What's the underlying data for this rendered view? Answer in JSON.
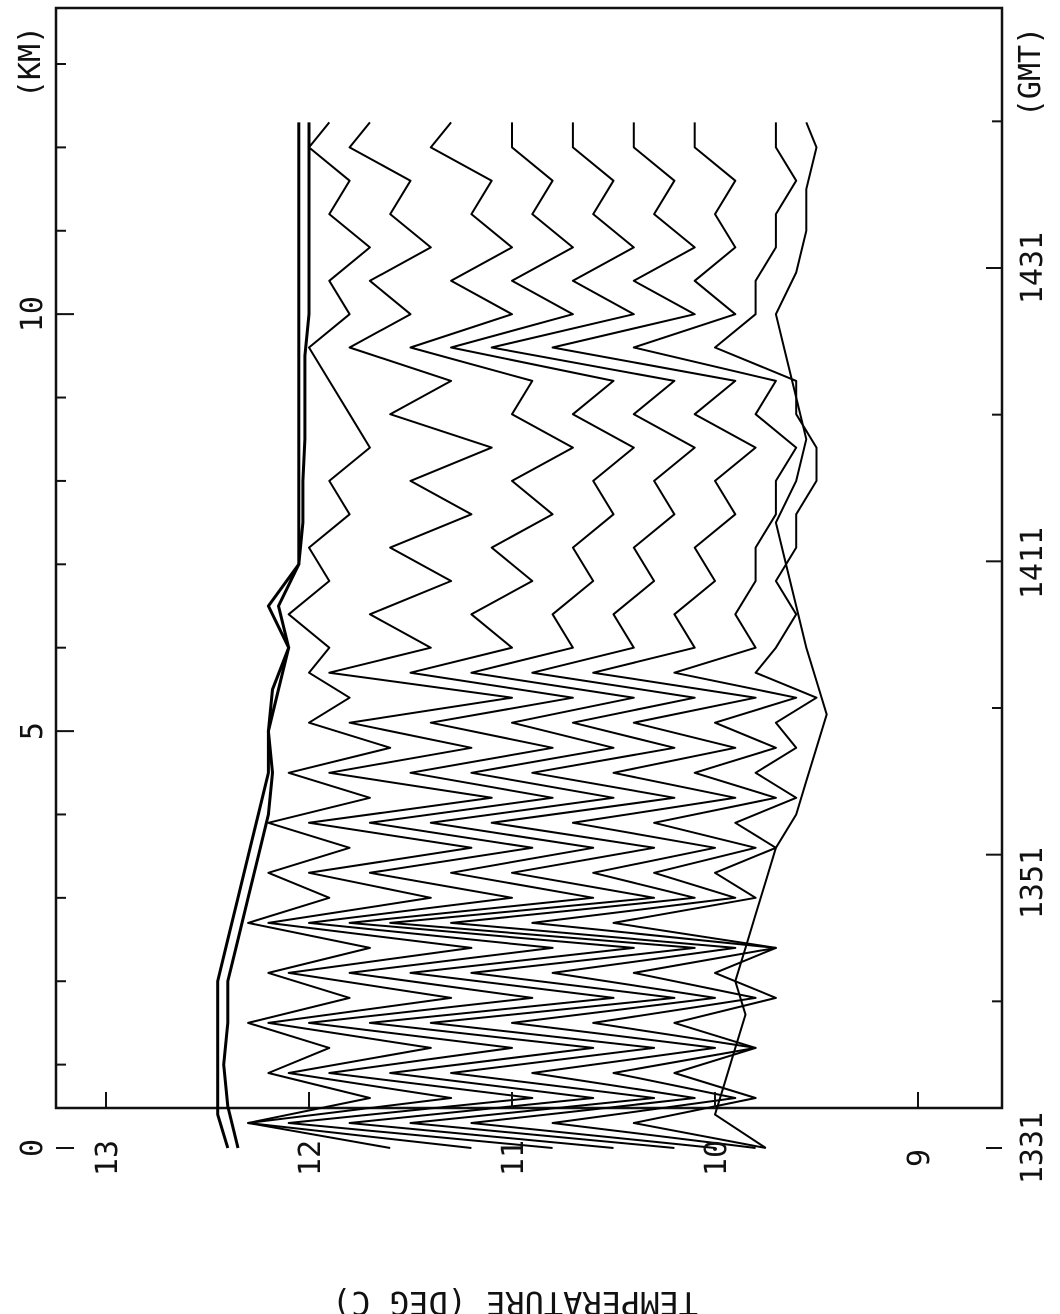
{
  "chart_data": {
    "type": "line",
    "orientation": "rotated 90° clockwise (temperature on vertical page axis, distance/time along page)",
    "ylabel": "TEMPERATURE (DEG C)",
    "ylim": [
      8.7,
      13.3
    ],
    "y_ticks": [
      "13",
      "12",
      "11",
      "10",
      "9"
    ],
    "x_top_unit": "(KM)",
    "x_top_ticks": [
      "0",
      "5",
      "10"
    ],
    "x_top_range": [
      0,
      13
    ],
    "x_bottom_unit": "(GMT)",
    "x_bottom_ticks": [
      "1331",
      "1351",
      "1411",
      "1431"
    ],
    "grid": false,
    "legend": "none",
    "line_color": "#000000",
    "series": [
      {
        "x": [
          0,
          0.4,
          0.7,
          1,
          1.5,
          2,
          2.5,
          3,
          3.5,
          4,
          4.5,
          5,
          5.5,
          6,
          6.5,
          7,
          7.5,
          8,
          8.5,
          9,
          9.5,
          10,
          10.5,
          11,
          11.5,
          12,
          12.3
        ],
        "values": [
          12.4,
          12.45,
          12.45,
          12.45,
          12.45,
          12.45,
          12.4,
          12.35,
          12.3,
          12.25,
          12.2,
          12.2,
          12.15,
          12.1,
          12.2,
          12.05,
          12.05,
          12.05,
          12.05,
          12.05,
          12.05,
          12.05,
          12.05,
          12.05,
          12.05,
          12.05,
          12.05
        ]
      },
      {
        "x": [
          0,
          0.5,
          1,
          1.5,
          2,
          2.5,
          3,
          3.5,
          4,
          4.5,
          5,
          5.5,
          6,
          6.5,
          7,
          7.5,
          8,
          8.5,
          9,
          9.5,
          10,
          10.5,
          11,
          11.5,
          12,
          12.3
        ],
        "values": [
          12.35,
          12.4,
          12.42,
          12.4,
          12.4,
          12.35,
          12.3,
          12.25,
          12.2,
          12.18,
          12.2,
          12.18,
          12.1,
          12.15,
          12.05,
          12.03,
          12.03,
          12.02,
          12.02,
          12.02,
          12.0,
          12.0,
          12.0,
          12.0,
          12.0,
          12.0
        ]
      },
      {
        "x": [
          0,
          0.3,
          0.6,
          0.9,
          1.2,
          1.5,
          1.8,
          2.1,
          2.4,
          2.7,
          3,
          3.3,
          3.6,
          3.9,
          4.2,
          4.5,
          4.8,
          5.1,
          5.4,
          5.7,
          6,
          6.4,
          6.8,
          7.2,
          7.6,
          8,
          8.4,
          8.8,
          9.2,
          9.6,
          10,
          10.4,
          10.8,
          11.2,
          11.6,
          12,
          12.3
        ],
        "values": [
          11.6,
          12.3,
          11.7,
          12.2,
          11.9,
          12.3,
          11.8,
          12.2,
          11.7,
          12.3,
          11.9,
          12.2,
          11.8,
          12.2,
          11.7,
          12.1,
          11.6,
          12.0,
          11.8,
          12.0,
          11.9,
          12.1,
          11.9,
          12.0,
          11.8,
          11.9,
          11.7,
          11.8,
          11.9,
          12.0,
          11.8,
          11.9,
          11.7,
          11.9,
          11.8,
          12.0,
          11.9
        ]
      },
      {
        "x": [
          0,
          0.3,
          0.6,
          0.9,
          1.2,
          1.5,
          1.8,
          2.1,
          2.4,
          2.7,
          3,
          3.3,
          3.6,
          3.9,
          4.2,
          4.5,
          4.8,
          5.1,
          5.4,
          5.7,
          6,
          6.4,
          6.8,
          7.2,
          7.6,
          8,
          8.4,
          8.8,
          9.2,
          9.6,
          10,
          10.4,
          10.8,
          11.2,
          11.6,
          12,
          12.3
        ],
        "values": [
          11.2,
          12.3,
          11.3,
          12.1,
          11.4,
          12.2,
          11.3,
          12.1,
          11.2,
          12.2,
          11.4,
          12.0,
          11.2,
          12.0,
          11.1,
          11.9,
          11.2,
          11.8,
          11.0,
          11.9,
          11.4,
          11.7,
          11.3,
          11.6,
          11.2,
          11.5,
          11.1,
          11.6,
          11.3,
          11.8,
          11.5,
          11.7,
          11.4,
          11.6,
          11.5,
          11.8,
          11.7
        ]
      },
      {
        "x": [
          0,
          0.3,
          0.6,
          0.9,
          1.2,
          1.5,
          1.8,
          2.1,
          2.4,
          2.7,
          3,
          3.3,
          3.6,
          3.9,
          4.2,
          4.5,
          4.8,
          5.1,
          5.4,
          5.7,
          6,
          6.4,
          6.8,
          7.2,
          7.6,
          8,
          8.4,
          8.8,
          9.2,
          9.6,
          10,
          10.4,
          10.8,
          11.2,
          11.6,
          12,
          12.3
        ],
        "values": [
          10.8,
          12.1,
          10.9,
          11.9,
          11.0,
          12.0,
          10.9,
          11.8,
          10.8,
          12.0,
          11.0,
          11.7,
          10.9,
          11.7,
          10.8,
          11.5,
          10.8,
          11.4,
          10.7,
          11.5,
          11.0,
          11.2,
          10.9,
          11.1,
          10.8,
          11.0,
          10.7,
          11.0,
          10.9,
          11.5,
          11.0,
          11.3,
          11.0,
          11.2,
          11.1,
          11.4,
          11.3
        ]
      },
      {
        "x": [
          0,
          0.3,
          0.6,
          0.9,
          1.2,
          1.5,
          1.8,
          2.1,
          2.4,
          2.7,
          3,
          3.3,
          3.6,
          3.9,
          4.2,
          4.5,
          4.8,
          5.1,
          5.4,
          5.7,
          6,
          6.4,
          6.8,
          7.2,
          7.6,
          8,
          8.4,
          8.8,
          9.2,
          9.6,
          10,
          10.4,
          10.8,
          11.2,
          11.6,
          12,
          12.3
        ],
        "values": [
          10.5,
          11.8,
          10.6,
          11.6,
          10.6,
          11.7,
          10.5,
          11.5,
          10.4,
          11.8,
          10.6,
          11.3,
          10.6,
          11.4,
          10.5,
          11.2,
          10.5,
          11.0,
          10.4,
          11.2,
          10.7,
          10.8,
          10.6,
          10.7,
          10.5,
          10.6,
          10.4,
          10.7,
          10.5,
          11.3,
          10.7,
          11.0,
          10.7,
          10.9,
          10.8,
          11.0,
          11.0
        ]
      },
      {
        "x": [
          0,
          0.3,
          0.6,
          0.9,
          1.2,
          1.5,
          1.8,
          2.1,
          2.4,
          2.7,
          3,
          3.3,
          3.6,
          3.9,
          4.2,
          4.5,
          4.8,
          5.1,
          5.4,
          5.7,
          6,
          6.4,
          6.8,
          7.2,
          7.6,
          8,
          8.4,
          8.8,
          9.2,
          9.6,
          10,
          10.4,
          10.8,
          11.2,
          11.6,
          12,
          12.3
        ],
        "values": [
          10.2,
          11.5,
          10.3,
          11.3,
          10.3,
          11.4,
          10.2,
          11.2,
          10.1,
          11.6,
          10.3,
          11.0,
          10.3,
          11.1,
          10.2,
          10.9,
          10.2,
          10.7,
          10.1,
          10.9,
          10.4,
          10.5,
          10.3,
          10.4,
          10.2,
          10.3,
          10.1,
          10.4,
          10.2,
          11.1,
          10.4,
          10.7,
          10.4,
          10.6,
          10.5,
          10.7,
          10.7
        ]
      },
      {
        "x": [
          0,
          0.3,
          0.6,
          0.9,
          1.2,
          1.5,
          1.8,
          2.1,
          2.4,
          2.7,
          3,
          3.3,
          3.6,
          3.9,
          4.2,
          4.5,
          4.8,
          5.1,
          5.4,
          5.7,
          6,
          6.4,
          6.8,
          7.2,
          7.6,
          8,
          8.4,
          8.8,
          9.2,
          9.6,
          10,
          10.4,
          10.8,
          11.2,
          11.6,
          12,
          12.3
        ],
        "values": [
          10.0,
          11.2,
          10.1,
          10.9,
          10.0,
          11.0,
          10.0,
          10.8,
          9.9,
          11.3,
          10.1,
          10.6,
          10.0,
          10.7,
          9.9,
          10.5,
          9.9,
          10.4,
          9.8,
          10.6,
          10.1,
          10.2,
          10.0,
          10.1,
          9.9,
          10.0,
          9.8,
          10.1,
          9.9,
          10.8,
          10.1,
          10.4,
          10.1,
          10.3,
          10.2,
          10.4,
          10.4
        ]
      },
      {
        "x": [
          0,
          0.3,
          0.6,
          0.9,
          1.2,
          1.5,
          1.8,
          2.1,
          2.4,
          2.7,
          3,
          3.3,
          3.6,
          3.9,
          4.2,
          4.5,
          4.8,
          5.1,
          5.4,
          5.7,
          6,
          6.4,
          6.8,
          7.2,
          7.6,
          8,
          8.4,
          8.8,
          9.2,
          9.6,
          10,
          10.4,
          10.8,
          11.2,
          11.6,
          12,
          12.3
        ],
        "values": [
          9.8,
          10.8,
          9.9,
          10.5,
          9.8,
          10.6,
          9.8,
          10.4,
          9.7,
          10.9,
          9.9,
          10.3,
          9.8,
          10.3,
          9.7,
          10.1,
          9.7,
          10.0,
          9.6,
          10.2,
          9.8,
          9.9,
          9.8,
          9.8,
          9.7,
          9.7,
          9.6,
          9.8,
          9.7,
          10.4,
          9.9,
          10.1,
          9.9,
          10.0,
          9.9,
          10.1,
          10.1
        ]
      },
      {
        "x": [
          0,
          0.3,
          0.6,
          0.9,
          1.2,
          1.5,
          1.8,
          2.1,
          2.4,
          2.7,
          3,
          3.3,
          3.6,
          3.9,
          4.2,
          4.5,
          4.8,
          5.1,
          5.4,
          5.7,
          6,
          6.4,
          6.8,
          7.2,
          7.6,
          8,
          8.4,
          8.8,
          9.2,
          9.6,
          10,
          10.4,
          10.8,
          11.2,
          11.6,
          12,
          12.3
        ],
        "values": [
          9.75,
          10.4,
          9.8,
          10.2,
          9.8,
          10.2,
          9.7,
          10.0,
          9.7,
          10.5,
          9.8,
          10.0,
          9.7,
          9.9,
          9.6,
          9.8,
          9.6,
          9.7,
          9.5,
          9.8,
          9.7,
          9.6,
          9.7,
          9.6,
          9.6,
          9.5,
          9.5,
          9.6,
          9.6,
          10.0,
          9.8,
          9.8,
          9.7,
          9.7,
          9.6,
          9.7,
          9.7
        ]
      },
      {
        "x": [
          0,
          0.4,
          0.8,
          1.2,
          1.6,
          2,
          2.4,
          2.8,
          3.2,
          3.6,
          4,
          4.4,
          4.8,
          5.2,
          5.6,
          6,
          6.5,
          7,
          7.5,
          8,
          8.5,
          9,
          9.5,
          10,
          10.5,
          11,
          11.5,
          12,
          12.3
        ],
        "values": [
          9.75,
          10.0,
          9.95,
          9.9,
          9.85,
          9.9,
          9.85,
          9.8,
          9.75,
          9.7,
          9.6,
          9.55,
          9.5,
          9.45,
          9.5,
          9.55,
          9.6,
          9.65,
          9.7,
          9.6,
          9.55,
          9.6,
          9.65,
          9.7,
          9.6,
          9.55,
          9.55,
          9.5,
          9.55
        ]
      }
    ]
  }
}
